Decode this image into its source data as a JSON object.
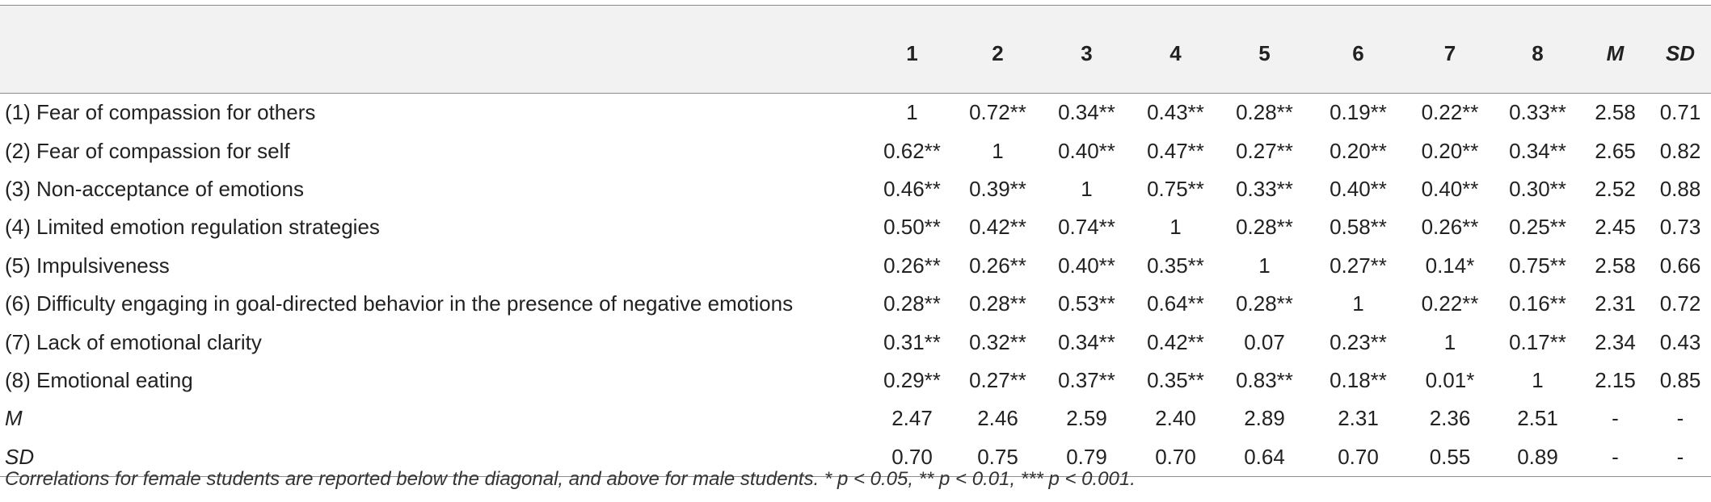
{
  "table": {
    "headers": [
      "",
      "1",
      "2",
      "3",
      "4",
      "5",
      "6",
      "7",
      "8",
      "M",
      "SD"
    ],
    "rows": [
      {
        "label": "(1) Fear of compassion for others",
        "values": [
          "1",
          "0.72**",
          "0.34**",
          "0.43**",
          "0.28**",
          "0.19**",
          "0.22**",
          "0.33**",
          "2.58",
          "0.71"
        ]
      },
      {
        "label": "(2) Fear of compassion for self",
        "values": [
          "0.62**",
          "1",
          "0.40**",
          "0.47**",
          "0.27**",
          "0.20**",
          "0.20**",
          "0.34**",
          "2.65",
          "0.82"
        ]
      },
      {
        "label": "(3) Non-acceptance of emotions",
        "values": [
          "0.46**",
          "0.39**",
          "1",
          "0.75**",
          "0.33**",
          "0.40**",
          "0.40**",
          "0.30**",
          "2.52",
          "0.88"
        ]
      },
      {
        "label": "(4) Limited emotion regulation strategies",
        "values": [
          "0.50**",
          "0.42**",
          "0.74**",
          "1",
          "0.28**",
          "0.58**",
          "0.26**",
          "0.25**",
          "2.45",
          "0.73"
        ]
      },
      {
        "label": "(5) Impulsiveness",
        "values": [
          "0.26**",
          "0.26**",
          "0.40**",
          "0.35**",
          "1",
          "0.27**",
          "0.14*",
          "0.75**",
          "2.58",
          "0.66"
        ]
      },
      {
        "label": "(6) Difficulty engaging in goal-directed behavior in the presence of negative emotions",
        "values": [
          "0.28**",
          "0.28**",
          "0.53**",
          "0.64**",
          "0.28**",
          "1",
          "0.22**",
          "0.16**",
          "2.31",
          "0.72"
        ]
      },
      {
        "label": "(7) Lack of emotional clarity",
        "values": [
          "0.31**",
          "0.32**",
          "0.34**",
          "0.42**",
          "0.07",
          "0.23**",
          "1",
          "0.17**",
          "2.34",
          "0.43"
        ]
      },
      {
        "label": "(8) Emotional eating",
        "values": [
          "0.29**",
          "0.27**",
          "0.37**",
          "0.35**",
          "0.83**",
          "0.18**",
          "0.01*",
          "1",
          "2.15",
          "0.85"
        ]
      },
      {
        "label": "M",
        "values": [
          "2.47",
          "2.46",
          "2.59",
          "2.40",
          "2.89",
          "2.31",
          "2.36",
          "2.51",
          "-",
          "-"
        ]
      },
      {
        "label": "SD",
        "values": [
          "0.70",
          "0.75",
          "0.79",
          "0.70",
          "0.64",
          "0.70",
          "0.55",
          "0.89",
          "-",
          "-"
        ]
      }
    ]
  },
  "footnote": "Correlations for female students are reported below the diagonal, and above for male students. * p < 0.05, ** p < 0.01, *** p < 0.001."
}
